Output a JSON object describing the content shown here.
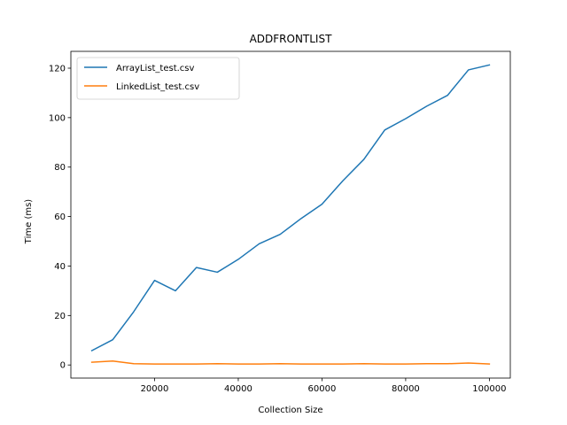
{
  "chart_data": {
    "type": "line",
    "title": "ADDFRONTLIST",
    "xlabel": "Collection Size",
    "ylabel": "Time (ms)",
    "xlim": [
      0,
      105000
    ],
    "ylim": [
      -5.3,
      126.8
    ],
    "xticks": [
      20000,
      40000,
      60000,
      80000,
      100000
    ],
    "yticks": [
      0,
      20,
      40,
      60,
      80,
      100,
      120
    ],
    "grid": false,
    "legend_position": "top-left",
    "x": [
      5000,
      10000,
      15000,
      20000,
      25000,
      30000,
      35000,
      40000,
      45000,
      50000,
      55000,
      60000,
      65000,
      70000,
      75000,
      80000,
      85000,
      90000,
      95000,
      100000
    ],
    "series": [
      {
        "name": "ArrayList_test.csv",
        "color": "#1f77b4",
        "values": [
          5.8,
          10.2,
          21.5,
          34.2,
          30.0,
          39.4,
          37.5,
          42.7,
          49.0,
          52.8,
          59.2,
          65.0,
          74.5,
          83.1,
          95.0,
          99.6,
          104.6,
          109.0,
          119.3,
          121.3
        ]
      },
      {
        "name": "LinkedList_test.csv",
        "color": "#ff7f0e",
        "values": [
          1.1,
          1.6,
          0.5,
          0.4,
          0.4,
          0.4,
          0.5,
          0.4,
          0.4,
          0.5,
          0.4,
          0.4,
          0.4,
          0.5,
          0.4,
          0.4,
          0.5,
          0.5,
          0.8,
          0.4
        ]
      }
    ]
  }
}
